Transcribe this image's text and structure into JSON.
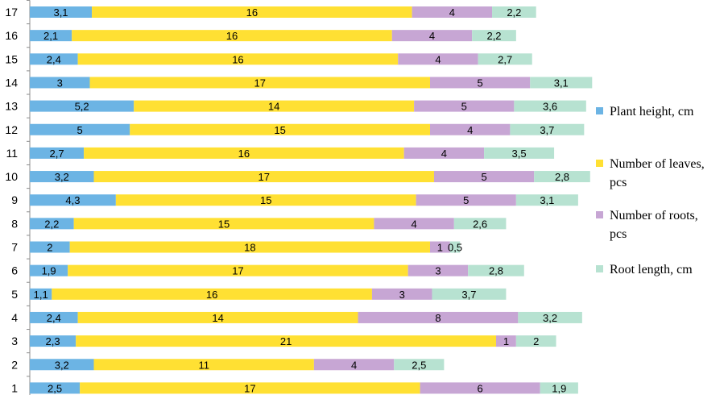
{
  "chart_data": {
    "type": "bar",
    "orientation": "horizontal",
    "stacked": true,
    "title": "",
    "xlabel": "",
    "ylabel": "",
    "grid": false,
    "legend_position": "right",
    "categories": [
      "1",
      "2",
      "3",
      "4",
      "5",
      "6",
      "7",
      "8",
      "9",
      "10",
      "11",
      "12",
      "13",
      "14",
      "15",
      "16",
      "17"
    ],
    "series": [
      {
        "name": "Plant height, cm",
        "color": "#6CB4E4",
        "values": [
          2.5,
          3.2,
          2.3,
          2.4,
          1.1,
          1.9,
          2,
          2.2,
          4.3,
          3.2,
          2.7,
          5,
          5.2,
          3,
          2.4,
          2.1,
          3.1
        ],
        "labels": [
          "2,5",
          "3,2",
          "2,3",
          "2,4",
          "1,1",
          "1,9",
          "2",
          "2,2",
          "4,3",
          "3,2",
          "2,7",
          "5",
          "5,2",
          "3",
          "2,4",
          "2,1",
          "3,1"
        ]
      },
      {
        "name": "Number of leaves, pcs",
        "color": "#FFE033",
        "values": [
          17,
          11,
          21,
          14,
          16,
          17,
          18,
          15,
          15,
          17,
          16,
          15,
          14,
          17,
          16,
          16,
          16
        ],
        "labels": [
          "17",
          "11",
          "21",
          "14",
          "16",
          "17",
          "18",
          "15",
          "15",
          "17",
          "16",
          "15",
          "14",
          "17",
          "16",
          "16",
          "16"
        ]
      },
      {
        "name": "Number of roots, pcs",
        "color": "#C7A6D4",
        "values": [
          6,
          4,
          1,
          8,
          3,
          3,
          1,
          4,
          5,
          5,
          4,
          4,
          5,
          5,
          4,
          4,
          4
        ],
        "labels": [
          "6",
          "4",
          "1",
          "8",
          "3",
          "3",
          "1",
          "4",
          "5",
          "5",
          "4",
          "4",
          "5",
          "5",
          "4",
          "4",
          "4"
        ]
      },
      {
        "name": "Root length, cm",
        "color": "#B7E2D1",
        "values": [
          1.9,
          2.5,
          2,
          3.2,
          3.7,
          2.8,
          0.5,
          2.6,
          3.1,
          2.8,
          3.5,
          3.7,
          3.6,
          3.1,
          2.7,
          2.2,
          2.2
        ],
        "labels": [
          "1,9",
          "2,5",
          "2",
          "3,2",
          "3,7",
          "2,8",
          "0,5",
          "2,6",
          "3,1",
          "2,8",
          "3,5",
          "3,7",
          "3,6",
          "3,1",
          "2,7",
          "2,2",
          "2,2"
        ]
      }
    ],
    "legend": {
      "lines": [
        [
          "Plant height, cm"
        ],
        [
          "Number of leaves,",
          "pcs"
        ],
        [
          "Number of roots,",
          "pcs"
        ],
        [
          "Root length, cm"
        ]
      ]
    }
  }
}
